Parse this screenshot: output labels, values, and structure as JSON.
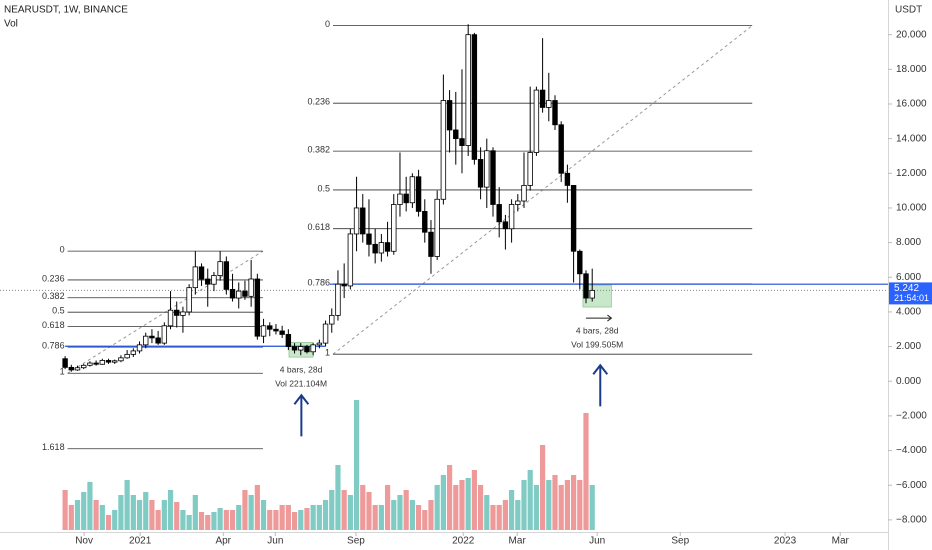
{
  "chart_data": {
    "type": "candlestick",
    "title": "NEARUSDT, 1W, BINANCE",
    "volume_label": "Vol",
    "y_axis_label": "USDT",
    "countdown": "21:54:01",
    "up_color": "#ffffff",
    "down_color": "#000000",
    "volume_up_color": "#80cbc4",
    "volume_down_color": "#ef9a9a",
    "open": [
      1.3,
      0.8,
      0.65,
      0.78,
      0.92,
      1.05,
      0.98,
      1.2,
      1.1,
      1.18,
      1.35,
      1.55,
      1.75,
      2.1,
      2.6,
      2.5,
      2.2,
      3.2,
      4.1,
      3.8,
      4.0,
      5.4,
      6.6,
      5.9,
      5.6,
      6.1,
      6.9,
      5.3,
      4.8,
      5.2,
      4.9,
      5.9,
      2.6,
      3.2,
      3.0,
      2.9,
      2.7,
      2.0,
      1.8,
      2.0,
      1.7,
      2.1,
      2.2,
      3.3,
      3.8,
      5.6,
      5.5,
      8.5,
      10.0,
      8.5,
      7.9,
      7.4,
      8.0,
      7.5,
      10.2,
      10.8,
      10.3,
      11.8,
      9.8,
      8.6,
      7.2,
      10.5,
      16.2,
      14.5,
      14.0,
      13.6,
      20.0,
      12.8,
      11.2,
      13.3,
      10.2,
      9.2,
      8.8,
      10.2,
      10.4,
      11.3,
      13.2,
      16.8,
      15.8,
      16.2,
      14.8,
      12.0,
      11.3,
      7.5,
      6.2,
      4.8
    ],
    "high": [
      1.45,
      0.95,
      0.9,
      1.0,
      1.15,
      1.2,
      1.3,
      1.3,
      1.25,
      1.5,
      1.8,
      1.9,
      2.3,
      2.8,
      3.0,
      2.9,
      3.4,
      5.2,
      4.6,
      4.3,
      5.6,
      7.5,
      6.8,
      6.5,
      6.3,
      7.5,
      7.2,
      6.2,
      5.7,
      5.8,
      7.0,
      6.2,
      3.6,
      3.4,
      3.3,
      3.2,
      3.0,
      2.2,
      2.2,
      2.1,
      2.2,
      2.4,
      3.5,
      4.2,
      6.4,
      6.8,
      8.8,
      11.8,
      10.8,
      10.5,
      8.8,
      8.5,
      9.2,
      10.8,
      13.2,
      11.8,
      12.0,
      12.2,
      10.5,
      9.3,
      11.0,
      17.7,
      16.8,
      16.7,
      18.0,
      20.6,
      20.1,
      13.5,
      14.0,
      13.5,
      11.2,
      9.6,
      10.5,
      10.8,
      13.2,
      17.0,
      17.0,
      19.8,
      17.8,
      16.5,
      15.0,
      12.5,
      11.3,
      7.6,
      6.4,
      6.5
    ],
    "low": [
      0.7,
      0.55,
      0.6,
      0.7,
      0.85,
      0.9,
      0.95,
      1.0,
      1.0,
      1.1,
      1.3,
      1.4,
      1.6,
      1.9,
      2.2,
      2.1,
      2.1,
      3.0,
      3.1,
      2.8,
      3.8,
      5.0,
      5.5,
      4.3,
      5.2,
      5.8,
      5.0,
      4.6,
      4.2,
      4.7,
      4.3,
      2.4,
      2.2,
      2.6,
      2.7,
      2.5,
      1.8,
      1.6,
      1.5,
      1.6,
      1.5,
      1.9,
      2.0,
      2.8,
      3.5,
      4.8,
      5.3,
      7.5,
      8.0,
      7.2,
      6.8,
      6.9,
      7.2,
      7.3,
      9.5,
      9.8,
      10.0,
      9.5,
      8.0,
      6.2,
      7.0,
      10.2,
      13.2,
      12.5,
      12.0,
      13.0,
      12.5,
      10.5,
      10.0,
      9.5,
      8.3,
      7.6,
      8.0,
      9.8,
      10.0,
      11.0,
      13.0,
      15.5,
      15.0,
      14.5,
      11.5,
      10.3,
      5.7,
      5.3,
      4.5,
      4.6
    ],
    "close": [
      0.8,
      0.65,
      0.78,
      0.92,
      1.05,
      0.98,
      1.2,
      1.1,
      1.18,
      1.35,
      1.55,
      1.75,
      2.1,
      2.6,
      2.5,
      2.2,
      3.2,
      4.1,
      3.8,
      4.0,
      5.4,
      6.6,
      5.9,
      5.6,
      6.1,
      6.9,
      5.3,
      4.8,
      5.2,
      4.9,
      5.9,
      2.6,
      3.2,
      3.0,
      2.9,
      2.7,
      2.0,
      1.8,
      2.0,
      1.7,
      2.1,
      2.2,
      3.3,
      3.8,
      5.6,
      5.5,
      8.5,
      10.0,
      8.5,
      7.9,
      7.4,
      8.0,
      7.5,
      10.2,
      10.8,
      10.3,
      11.8,
      9.8,
      8.6,
      7.2,
      10.5,
      16.2,
      14.5,
      14.0,
      13.6,
      20.0,
      12.8,
      11.2,
      13.3,
      10.2,
      9.2,
      8.8,
      10.2,
      10.4,
      11.3,
      13.2,
      16.8,
      15.8,
      16.2,
      14.8,
      12.0,
      11.3,
      7.5,
      6.2,
      4.8,
      5.242
    ],
    "volume": [
      160,
      100,
      120,
      152,
      192,
      120,
      100,
      60,
      80,
      140,
      200,
      140,
      120,
      152,
      120,
      80,
      120,
      160,
      112,
      80,
      60,
      140,
      72,
      60,
      72,
      88,
      80,
      80,
      100,
      160,
      140,
      180,
      120,
      80,
      80,
      100,
      100,
      72,
      80,
      88,
      100,
      100,
      120,
      160,
      260,
      160,
      140,
      520,
      180,
      152,
      100,
      100,
      180,
      120,
      140,
      160,
      120,
      100,
      80,
      120,
      180,
      220,
      260,
      180,
      200,
      208,
      240,
      180,
      140,
      100,
      100,
      120,
      160,
      120,
      200,
      240,
      180,
      340,
      200,
      220,
      180,
      200,
      220,
      200,
      468,
      180
    ],
    "volume_ylim": [
      0,
      600
    ],
    "xlim": [
      -10.5,
      132.7
    ],
    "ylim": [
      -8.7,
      22
    ],
    "yticks": [
      {
        "value": 20,
        "label": "20.000"
      },
      {
        "value": 18,
        "label": "18.000"
      },
      {
        "value": 16,
        "label": "16.000"
      },
      {
        "value": 14,
        "label": "14.000"
      },
      {
        "value": 12,
        "label": "12.000"
      },
      {
        "value": 10,
        "label": "10.000"
      },
      {
        "value": 8,
        "label": "8.000"
      },
      {
        "value": 6,
        "label": "6.000"
      },
      {
        "value": 4,
        "label": "4.000"
      },
      {
        "value": 2,
        "label": "2.000"
      },
      {
        "value": 0,
        "label": "0.000"
      },
      {
        "value": -2,
        "label": "−2.000"
      },
      {
        "value": -4,
        "label": "−4.000"
      },
      {
        "value": -6,
        "label": "−6.000"
      },
      {
        "value": -8,
        "label": "−8.000"
      }
    ],
    "xticks": [
      {
        "value": 3.06,
        "label": "Nov"
      },
      {
        "value": 12.1,
        "label": "2021"
      },
      {
        "value": 25.5,
        "label": "Apr"
      },
      {
        "value": 33.9,
        "label": "Jun"
      },
      {
        "value": 46.9,
        "label": "Sep"
      },
      {
        "value": 64.2,
        "label": "2022"
      },
      {
        "value": 72.9,
        "label": "Mar"
      },
      {
        "value": 85.8,
        "label": "Jun"
      },
      {
        "value": 99.2,
        "label": "Sep"
      },
      {
        "value": 116.1,
        "label": "2023"
      },
      {
        "value": 125,
        "label": "Mar"
      }
    ],
    "fibs": [
      {
        "levels": [
          0,
          0.236,
          0.382,
          0.5,
          0.618,
          0.786,
          1,
          1.618
        ],
        "top": 7.51,
        "bottom": 0.46,
        "start": 0.4,
        "end": 31.9
      },
      {
        "levels": [
          0,
          0.236,
          0.382,
          0.5,
          0.618,
          0.786,
          1
        ],
        "top": 20.52,
        "bottom": 1.56,
        "start": 43.2,
        "end": 110.8
      }
    ],
    "hlines": [
      {
        "price": 2.02,
        "start": 0,
        "end": 41.9
      },
      {
        "price": 5.6,
        "start": 42.7,
        "end": 132.7
      }
    ],
    "measures": [
      {
        "start": 36.1,
        "end": 40,
        "low": 1.39,
        "high": 2.25,
        "bars_label": "4 bars, 28d",
        "volume_label": "Vol 221.104M"
      },
      {
        "start": 83.5,
        "end": 88.1,
        "low": 4.28,
        "high": 5.55,
        "bars_label": "4 bars, 28d",
        "volume_label": "Vol 199.505M"
      }
    ],
    "arrows": [
      {
        "at": 38.1,
        "from": -3.18,
        "to": -0.81
      },
      {
        "at": 86.3,
        "from": -1.45,
        "to": 0.92
      }
    ]
  }
}
